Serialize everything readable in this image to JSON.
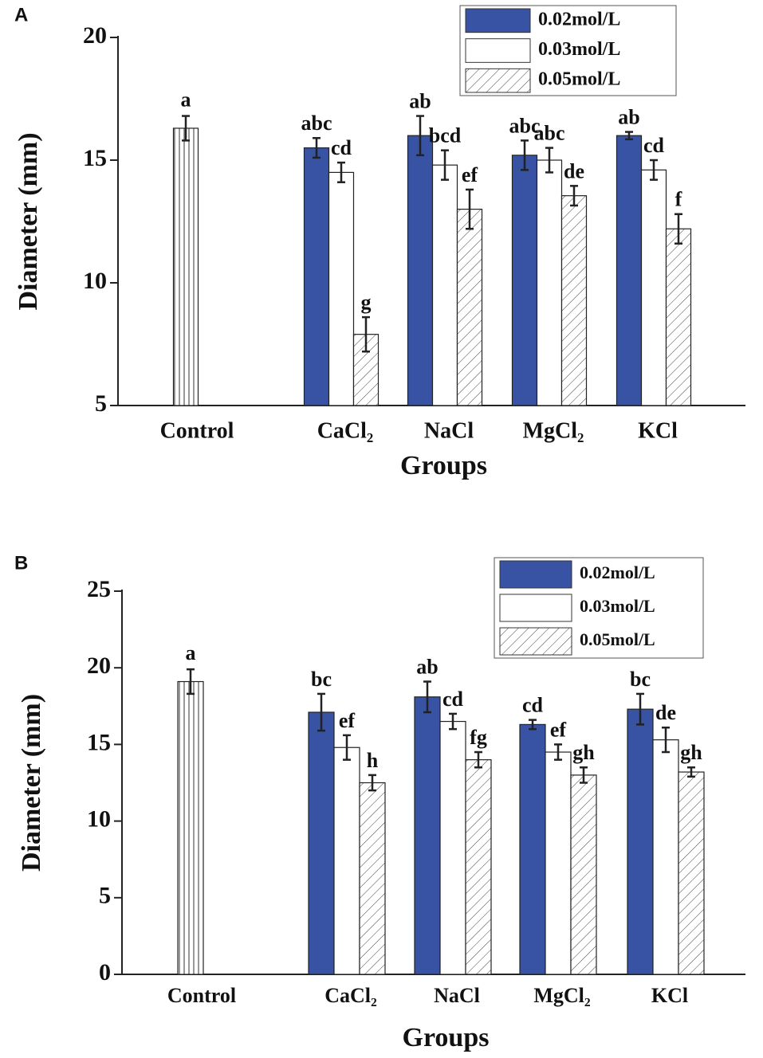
{
  "chart_data": [
    {
      "type": "bar",
      "panel_label": "A",
      "xlabel": "Groups",
      "ylabel": "Diameter (mm)",
      "categories": [
        "Control",
        "CaCl₂",
        "NaCl",
        "MgCl₂",
        "KCl"
      ],
      "control": {
        "value": 16.3,
        "error": 0.5,
        "annotation": "a",
        "color": "#ffffff",
        "hatch": "vertical"
      },
      "series": [
        {
          "name": "0.02mol/L",
          "color": "#3953a4",
          "values": [
            null,
            15.5,
            16.0,
            15.2,
            16.0
          ],
          "errors": [
            null,
            0.4,
            0.8,
            0.6,
            0.15
          ],
          "annotations": [
            null,
            "abc",
            "ab",
            "abc",
            "ab"
          ]
        },
        {
          "name": "0.03mol/L",
          "color": "#ffffff",
          "values": [
            null,
            14.5,
            14.8,
            15.0,
            14.6
          ],
          "errors": [
            null,
            0.4,
            0.6,
            0.5,
            0.4
          ],
          "annotations": [
            null,
            "cd",
            "bcd",
            "abc",
            "cd"
          ]
        },
        {
          "name": "0.05mol/L",
          "color": "#ffffff",
          "hatch": "diagonal",
          "values": [
            null,
            7.9,
            13.0,
            13.55,
            12.2
          ],
          "errors": [
            null,
            0.7,
            0.8,
            0.4,
            0.6
          ],
          "annotations": [
            null,
            "g",
            "ef",
            "de",
            "f"
          ]
        }
      ],
      "ylim": [
        5,
        20
      ],
      "yticks": [
        5,
        10,
        15,
        20
      ],
      "legend": "upper right"
    },
    {
      "type": "bar",
      "panel_label": "B",
      "xlabel": "Groups",
      "ylabel": "Diameter (mm)",
      "categories": [
        "Control",
        "CaCl₂",
        "NaCl",
        "MgCl₂",
        "KCl"
      ],
      "control": {
        "value": 19.1,
        "error": 0.8,
        "annotation": "a",
        "color": "#ffffff",
        "hatch": "vertical"
      },
      "series": [
        {
          "name": "0.02mol/L",
          "color": "#3953a4",
          "values": [
            null,
            17.1,
            18.1,
            16.3,
            17.3
          ],
          "errors": [
            null,
            1.2,
            1.0,
            0.3,
            1.0
          ],
          "annotations": [
            null,
            "bc",
            "ab",
            "cd",
            "bc"
          ]
        },
        {
          "name": "0.03mol/L",
          "color": "#ffffff",
          "values": [
            null,
            14.8,
            16.5,
            14.5,
            15.3
          ],
          "errors": [
            null,
            0.8,
            0.5,
            0.5,
            0.8
          ],
          "annotations": [
            null,
            "ef",
            "cd",
            "ef",
            "de"
          ]
        },
        {
          "name": "0.05mol/L",
          "color": "#ffffff",
          "hatch": "diagonal",
          "values": [
            null,
            12.5,
            14.0,
            13.0,
            13.2
          ],
          "errors": [
            null,
            0.5,
            0.5,
            0.5,
            0.3
          ],
          "annotations": [
            null,
            "h",
            "fg",
            "gh",
            "gh"
          ]
        }
      ],
      "ylim": [
        0,
        25
      ],
      "yticks": [
        0,
        5,
        10,
        15,
        20,
        25
      ],
      "legend": "upper right"
    }
  ]
}
